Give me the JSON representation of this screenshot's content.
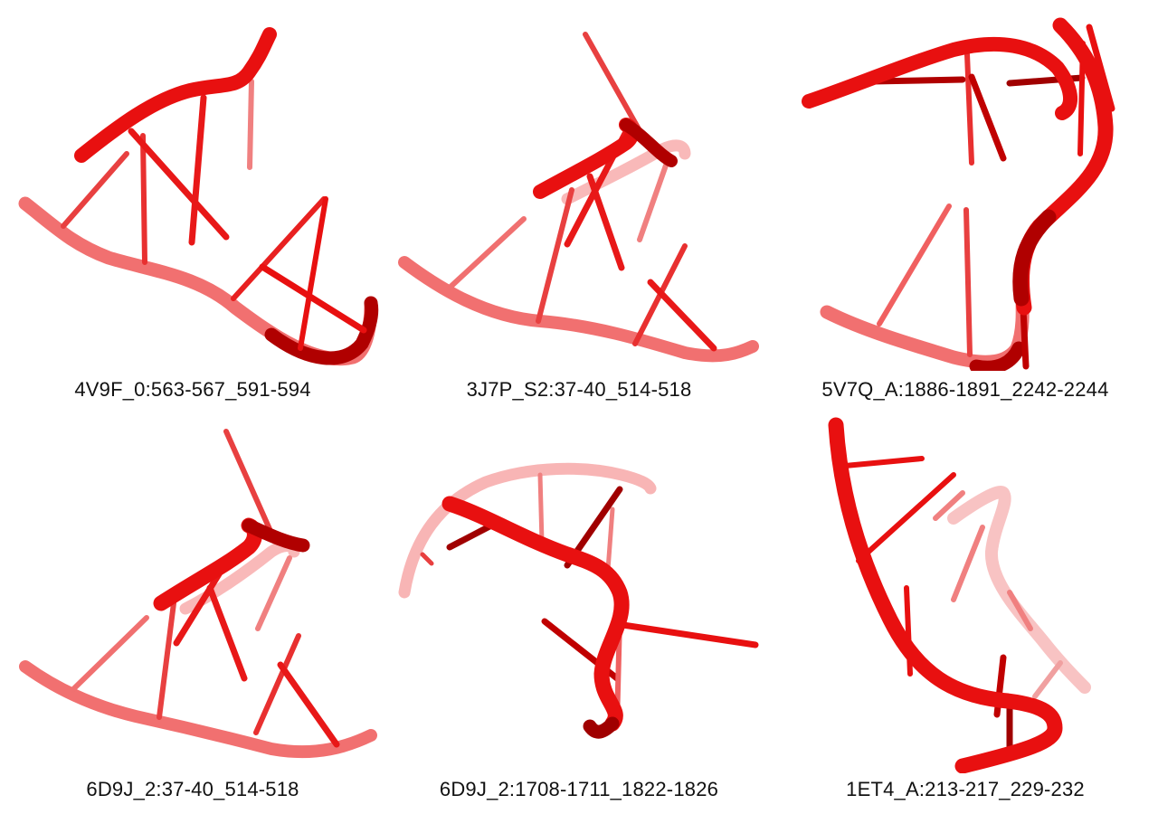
{
  "colors": {
    "front": "#e81010",
    "mid": "#f04848",
    "back": "#f7a0a0",
    "dark": "#a00000",
    "caption": "#111111"
  },
  "panels": [
    {
      "label": "4V9F_0:563-567_591-594"
    },
    {
      "label": "3J7P_S2:37-40_514-518"
    },
    {
      "label": "5V7Q_A:1886-1891_2242-2244"
    },
    {
      "label": "6D9J_2:37-40_514-518"
    },
    {
      "label": "6D9J_2:1708-1711_1822-1826"
    },
    {
      "label": "1ET4_A:213-217_229-232"
    }
  ]
}
